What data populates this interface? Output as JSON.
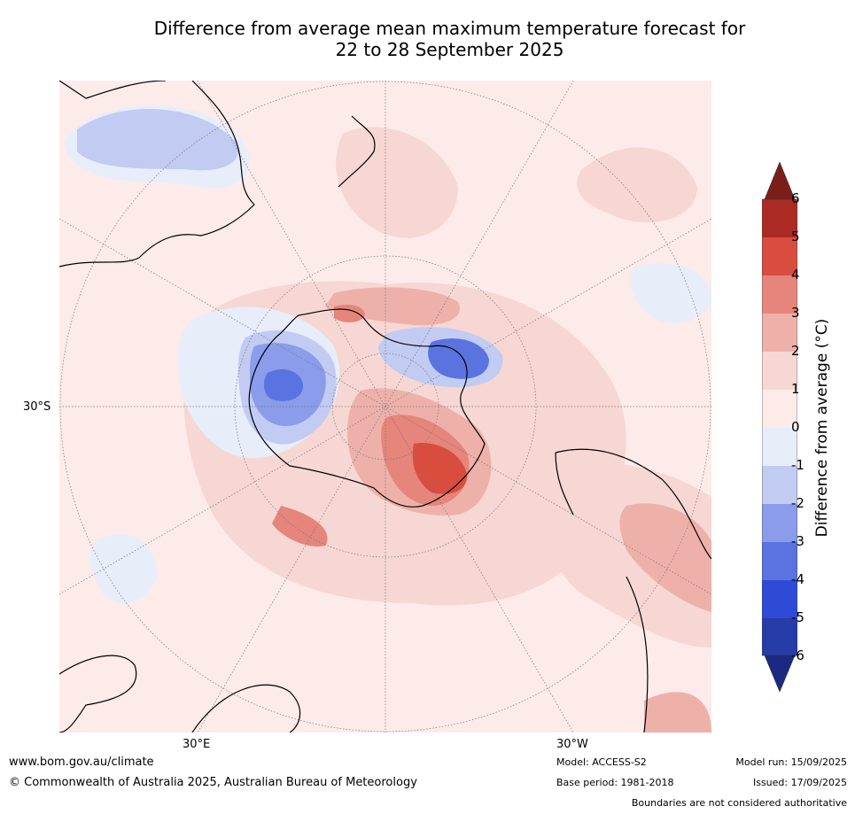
{
  "title": {
    "line1": "Difference from average mean maximum temperature forecast for",
    "line2": "22 to 28 September 2025"
  },
  "map": {
    "lat_label": "30°S",
    "lon_label_east": "30°E",
    "lon_label_west": "30°W"
  },
  "colorbar": {
    "title": "Difference from average (°C)",
    "ticks": [
      "6",
      "5",
      "4",
      "3",
      "2",
      "1",
      "0",
      "-1",
      "-2",
      "-3",
      "-4",
      "-5",
      "-6"
    ],
    "colors": [
      "#7b1e1a",
      "#ac2a24",
      "#d94d3f",
      "#e5857b",
      "#eeb1aa",
      "#f6d7d3",
      "#fcebe9",
      "#e8edfa",
      "#c2cbf2",
      "#8a9cea",
      "#5a73e0",
      "#304ad8",
      "#263ca8",
      "#1b2a80"
    ]
  },
  "footer": {
    "website": "www.bom.gov.au/climate",
    "copyright": "© Commonwealth of Australia 2025, Australian Bureau of Meteorology",
    "model": "Model: ACCESS-S2",
    "base_period": "Base period: 1981-2018",
    "model_run": "Model run: 15/09/2025",
    "issued": "Issued: 17/09/2025",
    "disclaimer": "Boundaries are not considered authoritative"
  }
}
